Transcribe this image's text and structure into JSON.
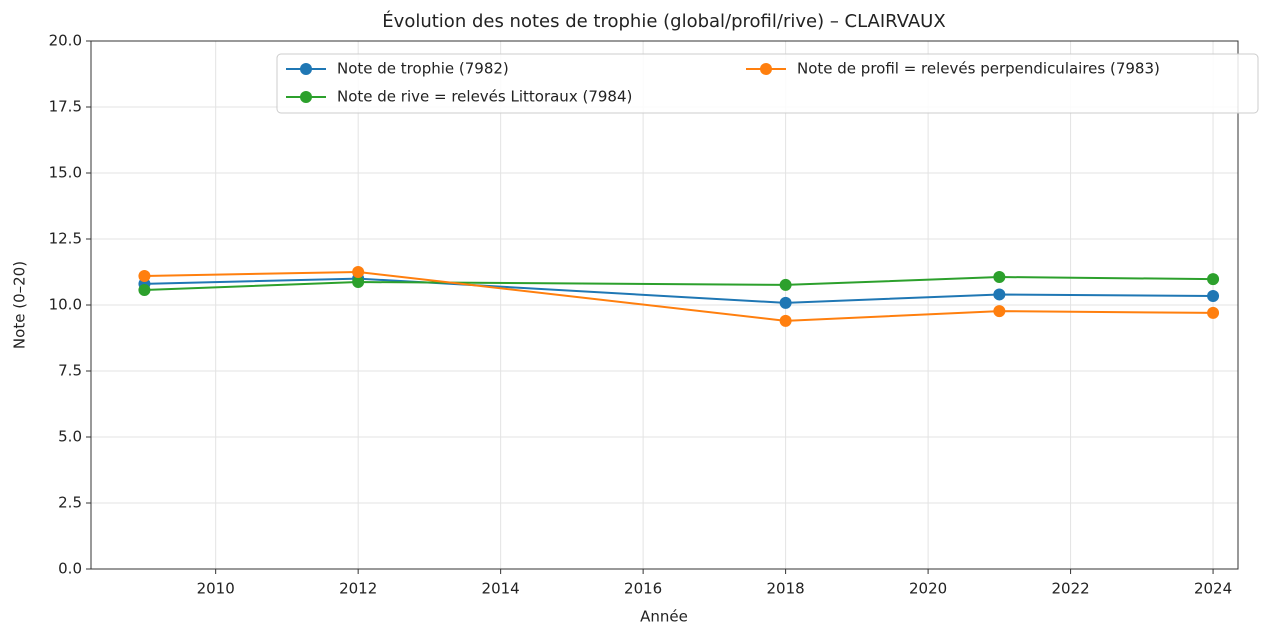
{
  "chart_data": {
    "type": "line",
    "title": "Évolution des notes de trophie (global/profil/rive) – CLAIRVAUX",
    "xlabel": "Année",
    "ylabel": "Note (0–20)",
    "x": [
      2009,
      2012,
      2018,
      2021,
      2024
    ],
    "series": [
      {
        "name": "Note de trophie (7982)",
        "color": "#1f77b4",
        "values": [
          10.8,
          11.0,
          10.08,
          10.4,
          10.34
        ]
      },
      {
        "name": "Note de rive = relevés Littoraux (7984)",
        "color": "#2ca02c",
        "values": [
          10.57,
          10.87,
          10.76,
          11.06,
          10.98
        ]
      },
      {
        "name": "Note de profil = relevés perpendiculaires (7983)",
        "color": "#ff7f0e",
        "values": [
          11.1,
          11.25,
          9.4,
          9.77,
          9.7
        ]
      }
    ],
    "xlim": [
      2008.25,
      2024.35
    ],
    "xticks": [
      2010,
      2012,
      2014,
      2016,
      2018,
      2020,
      2022,
      2024
    ],
    "ylim": [
      0,
      20
    ],
    "yticks": [
      {
        "value": 0,
        "label": "0.0"
      },
      2.5,
      {
        "value": 5,
        "label": "5.0"
      },
      7.5,
      {
        "value": 10,
        "label": "10.0"
      },
      12.5,
      {
        "value": 15,
        "label": "15.0"
      },
      17.5,
      {
        "value": 20,
        "label": "20.0"
      }
    ],
    "grid": true,
    "legend": "upper right",
    "legend_columns": 2
  }
}
